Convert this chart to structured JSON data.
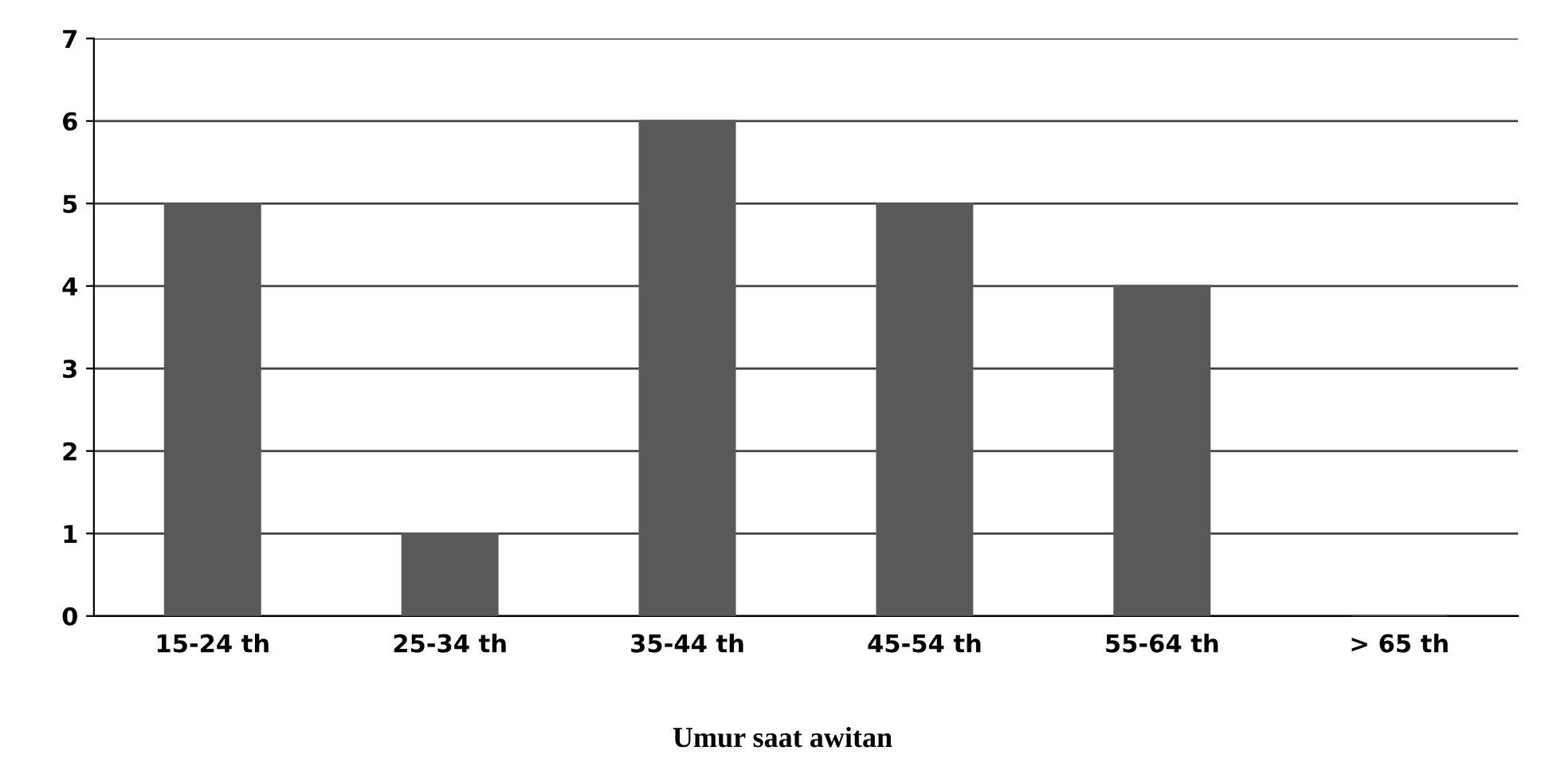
{
  "chart_data": {
    "type": "bar",
    "xlabel": "Umur saat awitan",
    "categories": [
      "15-24 th",
      "25-34 th",
      "35-44 th",
      "45-54 th",
      "55-64 th",
      "> 65 th"
    ],
    "values": [
      5,
      1,
      6,
      5,
      4,
      0
    ],
    "color": "#595959",
    "ylim": [
      0,
      7
    ],
    "yticks": [
      0,
      1,
      2,
      3,
      4,
      5,
      6,
      7
    ],
    "grid": "y",
    "legend": false
  }
}
